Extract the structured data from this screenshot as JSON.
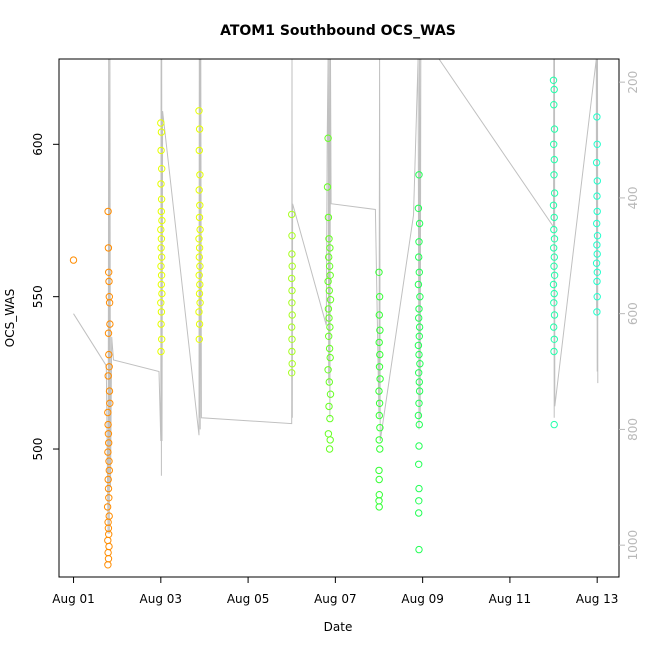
{
  "chart_data": {
    "type": "scatter",
    "title": "ATOM1 Southbound OCS_WAS",
    "xlabel": "Date",
    "ylabel": "OCS_WAS",
    "x_unit": "date (2016-08)",
    "xlim": [
      "2016-07-31T16:00",
      "2016-08-13T12:00"
    ],
    "ylim": [
      458,
      628
    ],
    "x_ticks": [
      {
        "date": "2016-08-01",
        "label": "Aug 01"
      },
      {
        "date": "2016-08-03",
        "label": "Aug 03"
      },
      {
        "date": "2016-08-05",
        "label": "Aug 05"
      },
      {
        "date": "2016-08-07",
        "label": "Aug 07"
      },
      {
        "date": "2016-08-09",
        "label": "Aug 09"
      },
      {
        "date": "2016-08-11",
        "label": "Aug 11"
      },
      {
        "date": "2016-08-13",
        "label": "Aug 13"
      }
    ],
    "y_ticks": [
      500,
      550,
      600
    ],
    "secondary_y": {
      "description": "altitude trace (grey line), inverted axis",
      "lim": [
        1055,
        160
      ],
      "ticks": [
        200,
        400,
        600,
        800,
        1000
      ],
      "color": "#c0c0c0"
    },
    "point_style": "open circles, color varies with time (orange to cyan)",
    "flights": [
      {
        "date": "2016-08-01",
        "color": "#ff8c00",
        "points": [
          [
            "2016-08-01T00:00",
            562
          ],
          [
            "2016-08-01T19:00",
            578
          ],
          [
            "2016-08-01T19:10",
            566
          ],
          [
            "2016-08-01T19:20",
            558
          ],
          [
            "2016-08-01T19:30",
            555
          ],
          [
            "2016-08-01T19:40",
            550
          ],
          [
            "2016-08-01T19:50",
            548
          ],
          [
            "2016-08-01T20:00",
            541
          ],
          [
            "2016-08-01T19:15",
            538
          ],
          [
            "2016-08-01T19:25",
            531
          ],
          [
            "2016-08-01T19:35",
            527
          ],
          [
            "2016-08-01T19:05",
            524
          ],
          [
            "2016-08-01T19:45",
            519
          ],
          [
            "2016-08-01T19:55",
            515
          ],
          [
            "2016-08-01T18:50",
            512
          ],
          [
            "2016-08-01T19:00",
            508
          ],
          [
            "2016-08-01T19:10",
            505
          ],
          [
            "2016-08-01T19:20",
            502
          ],
          [
            "2016-08-01T18:55",
            499
          ],
          [
            "2016-08-01T19:30",
            496
          ],
          [
            "2016-08-01T19:40",
            493
          ],
          [
            "2016-08-01T19:05",
            490
          ],
          [
            "2016-08-01T19:15",
            487
          ],
          [
            "2016-08-01T19:25",
            484
          ],
          [
            "2016-08-01T18:45",
            481
          ],
          [
            "2016-08-01T19:35",
            478
          ],
          [
            "2016-08-01T19:00",
            476
          ],
          [
            "2016-08-01T19:10",
            474
          ],
          [
            "2016-08-01T19:20",
            472
          ],
          [
            "2016-08-01T18:50",
            470
          ],
          [
            "2016-08-01T19:30",
            468
          ],
          [
            "2016-08-01T19:00",
            466
          ],
          [
            "2016-08-01T19:15",
            464
          ],
          [
            "2016-08-01T18:55",
            462
          ]
        ]
      },
      {
        "date": "2016-08-03",
        "color": "#e6ff00",
        "points": [
          [
            "2016-08-03T00:00",
            607
          ],
          [
            "2016-08-03T00:20",
            604
          ],
          [
            "2016-08-03T00:10",
            598
          ],
          [
            "2016-08-03T00:30",
            592
          ],
          [
            "2016-08-03T00:05",
            587
          ],
          [
            "2016-08-03T00:25",
            582
          ],
          [
            "2016-08-03T00:15",
            578
          ],
          [
            "2016-08-03T00:35",
            575
          ],
          [
            "2016-08-03T00:00",
            572
          ],
          [
            "2016-08-03T00:20",
            569
          ],
          [
            "2016-08-03T00:10",
            566
          ],
          [
            "2016-08-03T00:30",
            563
          ],
          [
            "2016-08-03T00:05",
            560
          ],
          [
            "2016-08-03T00:25",
            557
          ],
          [
            "2016-08-03T00:15",
            554
          ],
          [
            "2016-08-03T00:35",
            551
          ],
          [
            "2016-08-03T00:00",
            548
          ],
          [
            "2016-08-03T00:20",
            545
          ],
          [
            "2016-08-03T00:10",
            541
          ],
          [
            "2016-08-03T00:30",
            536
          ],
          [
            "2016-08-03T00:05",
            532
          ],
          [
            "2016-08-03T21:00",
            611
          ],
          [
            "2016-08-03T21:20",
            605
          ],
          [
            "2016-08-03T21:10",
            598
          ],
          [
            "2016-08-03T21:30",
            590
          ],
          [
            "2016-08-03T21:05",
            585
          ],
          [
            "2016-08-03T21:25",
            580
          ],
          [
            "2016-08-03T21:15",
            576
          ],
          [
            "2016-08-03T21:35",
            572
          ],
          [
            "2016-08-03T21:00",
            569
          ],
          [
            "2016-08-03T21:20",
            566
          ],
          [
            "2016-08-03T21:10",
            563
          ],
          [
            "2016-08-03T21:30",
            560
          ],
          [
            "2016-08-03T21:05",
            557
          ],
          [
            "2016-08-03T21:25",
            554
          ],
          [
            "2016-08-03T21:15",
            551
          ],
          [
            "2016-08-03T21:35",
            548
          ],
          [
            "2016-08-03T21:00",
            545
          ],
          [
            "2016-08-03T21:20",
            541
          ],
          [
            "2016-08-03T21:10",
            536
          ]
        ]
      },
      {
        "date": "2016-08-06",
        "color": "#a8ff20",
        "points": [
          [
            "2016-08-06T00:00",
            577
          ],
          [
            "2016-08-06T00:10",
            570
          ],
          [
            "2016-08-06T00:05",
            564
          ],
          [
            "2016-08-06T00:15",
            560
          ],
          [
            "2016-08-06T00:00",
            556
          ],
          [
            "2016-08-06T00:10",
            552
          ],
          [
            "2016-08-06T00:05",
            548
          ],
          [
            "2016-08-06T00:15",
            544
          ],
          [
            "2016-08-06T00:00",
            540
          ],
          [
            "2016-08-06T00:10",
            536
          ],
          [
            "2016-08-06T00:05",
            532
          ],
          [
            "2016-08-06T00:15",
            528
          ],
          [
            "2016-08-06T00:00",
            525
          ]
        ]
      },
      {
        "date": "2016-08-07",
        "color": "#66ff22",
        "points": [
          [
            "2016-08-06T20:00",
            602
          ],
          [
            "2016-08-06T19:40",
            586
          ],
          [
            "2016-08-06T20:10",
            576
          ],
          [
            "2016-08-06T20:30",
            569
          ],
          [
            "2016-08-06T21:00",
            566
          ],
          [
            "2016-08-06T20:20",
            563
          ],
          [
            "2016-08-06T20:50",
            560
          ],
          [
            "2016-08-06T21:10",
            557
          ],
          [
            "2016-08-06T20:00",
            555
          ],
          [
            "2016-08-06T20:40",
            552
          ],
          [
            "2016-08-06T21:20",
            549
          ],
          [
            "2016-08-06T20:10",
            546
          ],
          [
            "2016-08-06T20:30",
            543
          ],
          [
            "2016-08-06T21:00",
            540
          ],
          [
            "2016-08-06T20:20",
            537
          ],
          [
            "2016-08-06T20:50",
            533
          ],
          [
            "2016-08-06T21:10",
            530
          ],
          [
            "2016-08-06T20:00",
            526
          ],
          [
            "2016-08-06T20:40",
            522
          ],
          [
            "2016-08-06T21:20",
            518
          ],
          [
            "2016-08-06T20:30",
            514
          ],
          [
            "2016-08-06T21:00",
            510
          ],
          [
            "2016-08-06T20:10",
            505
          ],
          [
            "2016-08-06T21:10",
            503
          ],
          [
            "2016-08-06T20:50",
            500
          ]
        ]
      },
      {
        "date": "2016-08-08",
        "color": "#33ff33",
        "points": [
          [
            "2016-08-08T00:00",
            558
          ],
          [
            "2016-08-08T00:20",
            550
          ],
          [
            "2016-08-08T00:10",
            544
          ],
          [
            "2016-08-08T00:30",
            539
          ],
          [
            "2016-08-08T00:05",
            535
          ],
          [
            "2016-08-08T00:25",
            531
          ],
          [
            "2016-08-08T00:15",
            527
          ],
          [
            "2016-08-08T00:35",
            523
          ],
          [
            "2016-08-08T00:00",
            519
          ],
          [
            "2016-08-08T00:20",
            515
          ],
          [
            "2016-08-08T00:10",
            511
          ],
          [
            "2016-08-08T00:30",
            507
          ],
          [
            "2016-08-08T00:05",
            503
          ],
          [
            "2016-08-08T00:25",
            500
          ],
          [
            "2016-08-08T00:00",
            493
          ],
          [
            "2016-08-08T00:05",
            490
          ],
          [
            "2016-08-08T00:10",
            485
          ],
          [
            "2016-08-08T00:00",
            483
          ],
          [
            "2016-08-08T00:05",
            481
          ]
        ]
      },
      {
        "date": "2016-08-09",
        "color": "#22ff55",
        "points": [
          [
            "2016-08-08T22:00",
            590
          ],
          [
            "2016-08-08T21:40",
            579
          ],
          [
            "2016-08-08T22:20",
            574
          ],
          [
            "2016-08-08T22:00",
            568
          ],
          [
            "2016-08-08T21:50",
            563
          ],
          [
            "2016-08-08T22:10",
            558
          ],
          [
            "2016-08-08T21:40",
            554
          ],
          [
            "2016-08-08T22:30",
            550
          ],
          [
            "2016-08-08T22:00",
            546
          ],
          [
            "2016-08-08T21:50",
            543
          ],
          [
            "2016-08-08T22:20",
            540
          ],
          [
            "2016-08-08T22:10",
            537
          ],
          [
            "2016-08-08T21:40",
            534
          ],
          [
            "2016-08-08T22:00",
            531
          ],
          [
            "2016-08-08T22:30",
            528
          ],
          [
            "2016-08-08T21:50",
            525
          ],
          [
            "2016-08-08T22:10",
            522
          ],
          [
            "2016-08-08T22:20",
            519
          ],
          [
            "2016-08-08T22:00",
            515
          ],
          [
            "2016-08-08T21:40",
            511
          ],
          [
            "2016-08-08T22:10",
            508
          ],
          [
            "2016-08-08T22:00",
            501
          ],
          [
            "2016-08-08T21:50",
            495
          ],
          [
            "2016-08-08T22:00",
            487
          ],
          [
            "2016-08-08T21:55",
            483
          ],
          [
            "2016-08-08T21:50",
            479
          ],
          [
            "2016-08-08T22:00",
            467
          ]
        ]
      },
      {
        "date": "2016-08-12",
        "color": "#22ffaa",
        "points": [
          [
            "2016-08-12T00:00",
            621
          ],
          [
            "2016-08-12T00:20",
            618
          ],
          [
            "2016-08-12T00:10",
            613
          ],
          [
            "2016-08-12T00:30",
            605
          ],
          [
            "2016-08-12T00:05",
            600
          ],
          [
            "2016-08-12T00:25",
            595
          ],
          [
            "2016-08-12T00:15",
            590
          ],
          [
            "2016-08-12T00:35",
            584
          ],
          [
            "2016-08-12T00:00",
            580
          ],
          [
            "2016-08-12T00:20",
            576
          ],
          [
            "2016-08-12T00:10",
            572
          ],
          [
            "2016-08-12T00:30",
            569
          ],
          [
            "2016-08-12T00:05",
            566
          ],
          [
            "2016-08-12T00:25",
            563
          ],
          [
            "2016-08-12T00:15",
            560
          ],
          [
            "2016-08-12T00:35",
            557
          ],
          [
            "2016-08-12T00:00",
            554
          ],
          [
            "2016-08-12T00:20",
            551
          ],
          [
            "2016-08-12T00:10",
            548
          ],
          [
            "2016-08-12T00:30",
            544
          ],
          [
            "2016-08-12T00:05",
            540
          ],
          [
            "2016-08-12T00:25",
            536
          ],
          [
            "2016-08-12T00:15",
            532
          ],
          [
            "2016-08-12T00:20",
            508
          ]
        ]
      },
      {
        "date": "2016-08-13",
        "color": "#22ffcc",
        "points": [
          [
            "2016-08-12T23:50",
            609
          ],
          [
            "2016-08-13T00:00",
            600
          ],
          [
            "2016-08-12T23:40",
            594
          ],
          [
            "2016-08-13T00:05",
            588
          ],
          [
            "2016-08-12T23:55",
            583
          ],
          [
            "2016-08-13T00:00",
            578
          ],
          [
            "2016-08-12T23:45",
            574
          ],
          [
            "2016-08-13T00:10",
            570
          ],
          [
            "2016-08-12T23:50",
            567
          ],
          [
            "2016-08-13T00:00",
            564
          ],
          [
            "2016-08-12T23:40",
            561
          ],
          [
            "2016-08-13T00:05",
            558
          ],
          [
            "2016-08-12T23:55",
            555
          ],
          [
            "2016-08-13T00:00",
            550
          ],
          [
            "2016-08-12T23:50",
            545
          ]
        ]
      }
    ],
    "altitude_trace": [
      [
        "2016-08-01T00:00",
        600
      ],
      [
        "2016-08-01T18:00",
        690
      ],
      [
        "2016-08-01T19:00",
        980
      ],
      [
        "2016-08-01T19:20",
        160
      ],
      [
        "2016-08-01T19:40",
        980
      ],
      [
        "2016-08-01T20:00",
        160
      ],
      [
        "2016-08-01T20:20",
        900
      ],
      [
        "2016-08-01T21:00",
        640
      ],
      [
        "2016-08-01T22:00",
        680
      ],
      [
        "2016-08-02T23:00",
        700
      ],
      [
        "2016-08-03T00:00",
        820
      ],
      [
        "2016-08-03T00:10",
        160
      ],
      [
        "2016-08-03T00:20",
        880
      ],
      [
        "2016-08-03T00:30",
        160
      ],
      [
        "2016-08-03T00:40",
        820
      ],
      [
        "2016-08-03T01:00",
        250
      ],
      [
        "2016-08-03T21:00",
        810
      ],
      [
        "2016-08-03T21:10",
        160
      ],
      [
        "2016-08-03T21:20",
        780
      ],
      [
        "2016-08-03T21:30",
        160
      ],
      [
        "2016-08-03T21:40",
        800
      ],
      [
        "2016-08-03T22:00",
        160
      ],
      [
        "2016-08-03T22:20",
        780
      ],
      [
        "2016-08-06T00:00",
        790
      ],
      [
        "2016-08-06T00:10",
        160
      ],
      [
        "2016-08-06T00:20",
        780
      ],
      [
        "2016-08-06T00:30",
        410
      ],
      [
        "2016-08-06T19:00",
        620
      ],
      [
        "2016-08-06T19:30",
        300
      ],
      [
        "2016-08-06T20:00",
        160
      ],
      [
        "2016-08-06T20:20",
        720
      ],
      [
        "2016-08-06T20:40",
        160
      ],
      [
        "2016-08-06T21:00",
        780
      ],
      [
        "2016-08-06T21:20",
        160
      ],
      [
        "2016-08-06T21:40",
        410
      ],
      [
        "2016-08-07T22:00",
        420
      ],
      [
        "2016-08-08T00:00",
        780
      ],
      [
        "2016-08-08T00:20",
        160
      ],
      [
        "2016-08-08T00:40",
        820
      ],
      [
        "2016-08-08T19:00",
        430
      ],
      [
        "2016-08-08T21:30",
        160
      ],
      [
        "2016-08-08T22:00",
        800
      ],
      [
        "2016-08-08T22:20",
        160
      ],
      [
        "2016-08-08T22:40",
        780
      ],
      [
        "2016-08-08T23:00",
        160
      ],
      [
        "2016-08-09T09:00",
        160
      ],
      [
        "2016-08-12T00:00",
        450
      ],
      [
        "2016-08-12T00:10",
        160
      ],
      [
        "2016-08-12T00:20",
        780
      ],
      [
        "2016-08-12T00:30",
        160
      ],
      [
        "2016-08-12T00:40",
        760
      ],
      [
        "2016-08-12T23:30",
        160
      ],
      [
        "2016-08-12T23:40",
        600
      ],
      [
        "2016-08-12T23:50",
        160
      ],
      [
        "2016-08-13T00:00",
        700
      ],
      [
        "2016-08-13T00:10",
        160
      ],
      [
        "2016-08-13T00:20",
        720
      ]
    ]
  }
}
